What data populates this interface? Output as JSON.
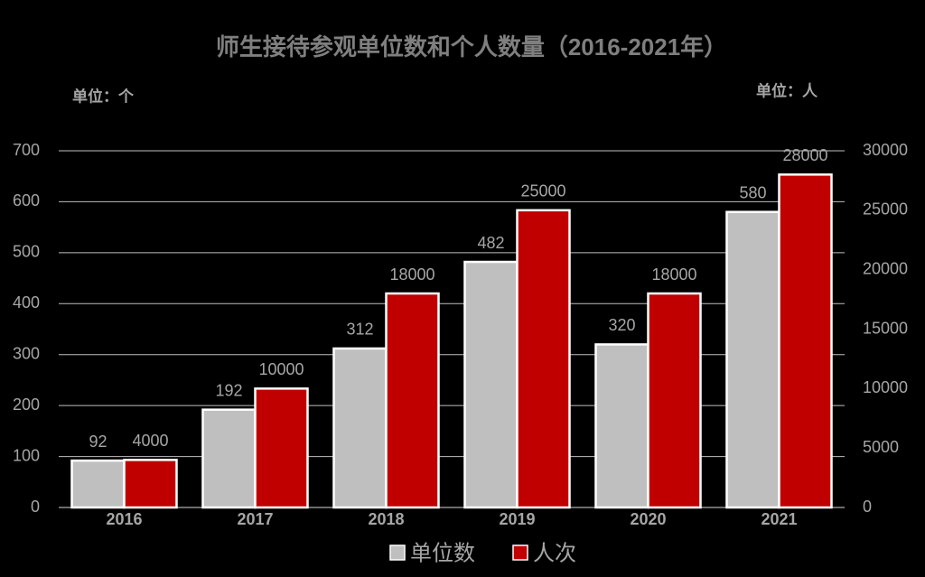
{
  "chart_data": {
    "type": "bar",
    "title": "师生接待参观单位数和个人数量（2016-2021年）",
    "y_unit": "单位：个",
    "y2_unit": "单位：人",
    "categories": [
      "2016",
      "2017",
      "2018",
      "2019",
      "2020",
      "2021"
    ],
    "series": [
      {
        "name": "单位数",
        "color": "#bfbfbf",
        "values": [
          92,
          192,
          312,
          482,
          320,
          580
        ]
      },
      {
        "name": "人次",
        "color": "#c00000",
        "axis": "y2",
        "values": [
          4000,
          10000,
          18000,
          25000,
          18000,
          28000
        ]
      }
    ],
    "ylim": [
      0,
      700
    ],
    "yticks": [
      0,
      100,
      200,
      300,
      400,
      500,
      600,
      700
    ],
    "y2lim": [
      0,
      30000
    ],
    "y2ticks": [
      0,
      5000,
      10000,
      15000,
      20000,
      25000,
      30000
    ],
    "grid": true,
    "legend": "bottom"
  }
}
